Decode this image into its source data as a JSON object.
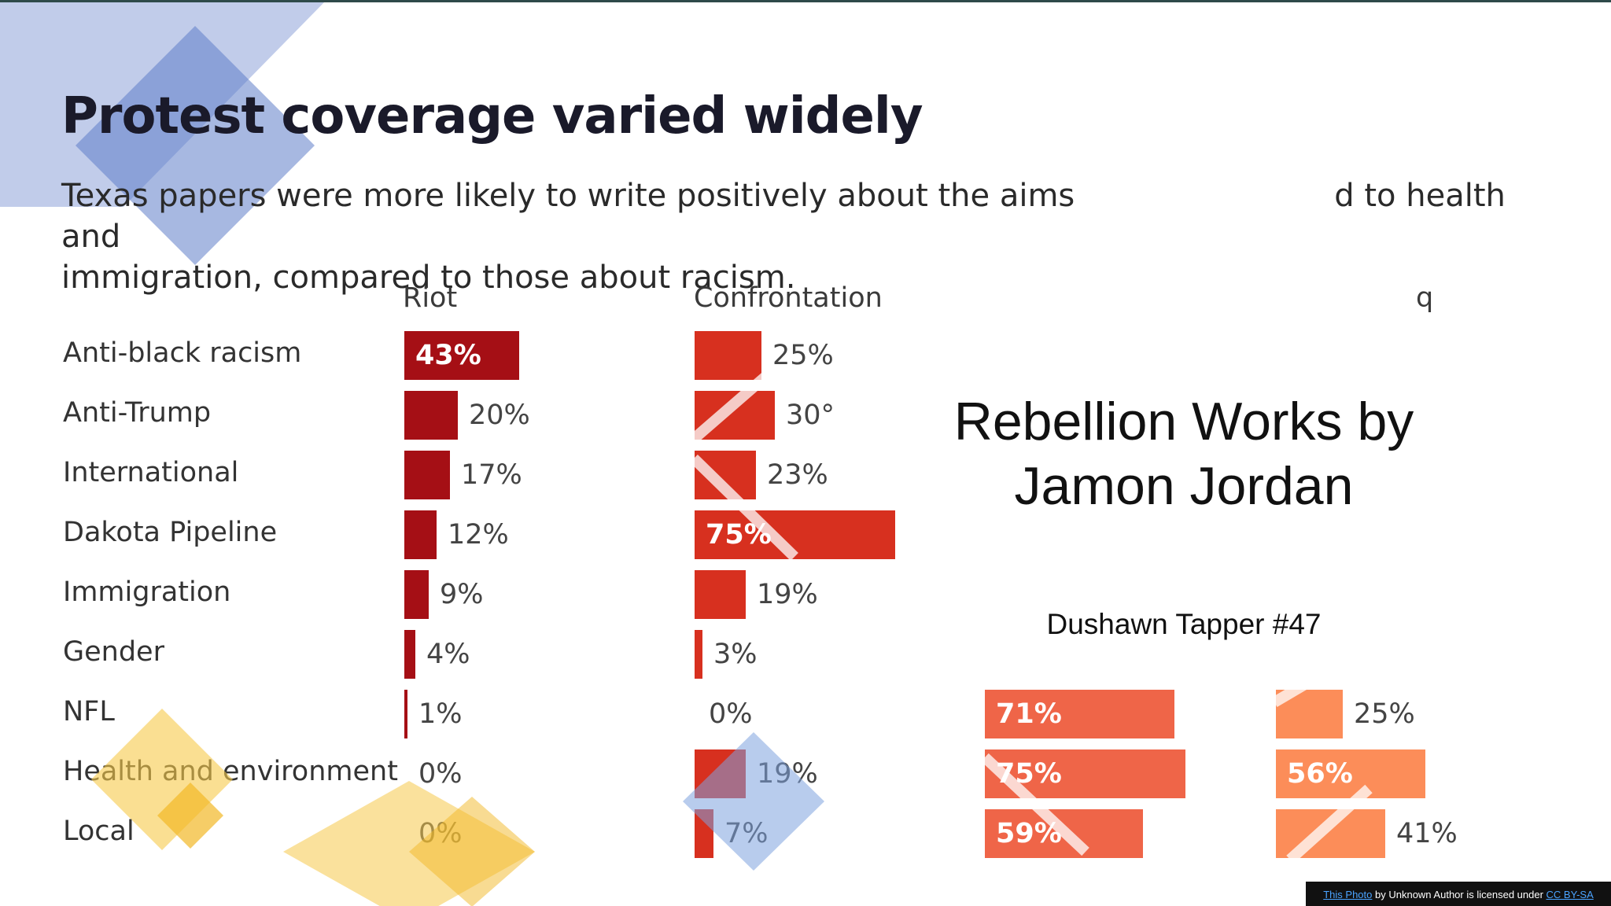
{
  "slide": {
    "title": "Protest coverage varied widely",
    "subtitle_part1": "Texas papers were more likely to write positively about the aims",
    "subtitle_part2": "d to health and",
    "subtitle_line2": "immigration, compared to those about racism.",
    "overlay_title_line1": "Rebellion Works by",
    "overlay_title_line2": "Jamon Jordan",
    "overlay_author": "Dushawn Tapper #47",
    "credit": {
      "photo_link": "This Photo",
      "by_text": " by Unknown Author is licensed under ",
      "license_link": "CC BY-SA"
    }
  },
  "chart_data": {
    "type": "bar",
    "title": "Protest coverage varied widely",
    "categories": [
      "Anti-black racism",
      "Anti-Trump",
      "International",
      "Dakota Pipeline",
      "Immigration",
      "Gender",
      "NFL",
      "Health and environment",
      "Local"
    ],
    "series": [
      {
        "name": "Riot",
        "color": "#a50f15",
        "values": [
          43,
          20,
          17,
          12,
          9,
          4,
          1,
          0,
          0
        ],
        "labels": [
          "43%",
          "20%",
          "17%",
          "12%",
          "9%",
          "4%",
          "1%",
          "0%",
          "0%"
        ]
      },
      {
        "name": "Confrontation",
        "color": "#d7301f",
        "values": [
          25,
          30,
          23,
          75,
          19,
          3,
          0,
          19,
          7
        ],
        "labels": [
          "25%",
          "30°",
          "23%",
          "75%",
          "19%",
          "3%",
          "0%",
          "19%",
          "7%"
        ]
      },
      {
        "name": "",
        "color": "#ef6548",
        "values": [
          null,
          null,
          null,
          null,
          null,
          null,
          71,
          75,
          59
        ],
        "labels": [
          "",
          "",
          "",
          "",
          "",
          "",
          "71%",
          "75%",
          "59%"
        ]
      },
      {
        "name": "q",
        "color": "#fc8d59",
        "values": [
          null,
          null,
          null,
          null,
          null,
          null,
          25,
          56,
          41
        ],
        "labels": [
          "",
          "",
          "",
          "",
          "",
          "",
          "25%",
          "56%",
          "41%"
        ]
      }
    ],
    "xlim": [
      0,
      100
    ]
  }
}
